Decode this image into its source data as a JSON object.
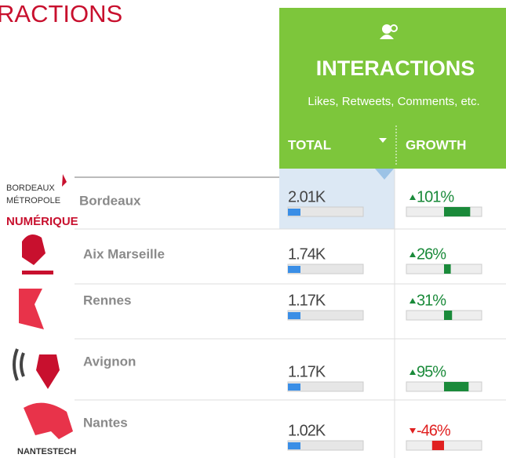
{
  "page_title": "RACTIONS",
  "header": {
    "title": "INTERACTIONS",
    "subtitle": "Likes, Retweets, Comments, etc.",
    "columns": [
      "TOTAL",
      "GROWTH"
    ]
  },
  "rows": [
    {
      "name": "Bordeaux",
      "total": "2.01K",
      "growth": {
        "value": 101,
        "label": "101%"
      }
    },
    {
      "name": "Aix Marseille",
      "total": "1.74K",
      "growth": {
        "value": 26,
        "label": "26%"
      }
    },
    {
      "name": "Rennes",
      "total": "1.17K",
      "growth": {
        "value": 31,
        "label": "31%"
      }
    },
    {
      "name": "Avignon",
      "total": "1.17K",
      "growth": {
        "value": 95,
        "label": "95%"
      }
    },
    {
      "name": "Nantes",
      "total": "1.02K",
      "growth": {
        "value": -46,
        "label": "-46%"
      }
    }
  ]
}
